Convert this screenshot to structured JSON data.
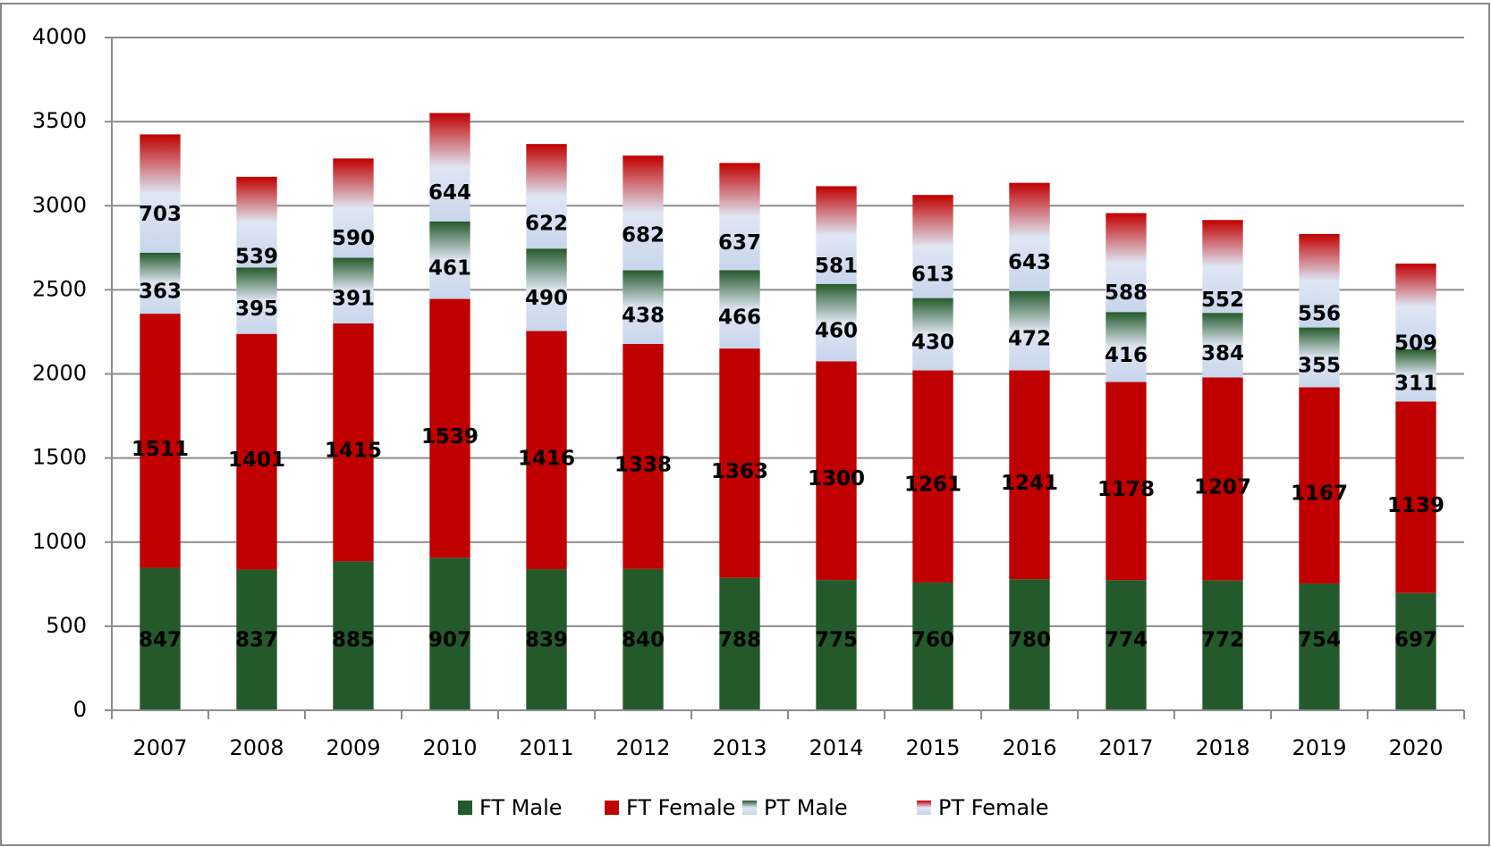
{
  "chart_data": {
    "type": "stacked_bar",
    "categories": [
      "2007",
      "2008",
      "2009",
      "2010",
      "2011",
      "2012",
      "2013",
      "2014",
      "2015",
      "2016",
      "2017",
      "2018",
      "2019",
      "2020"
    ],
    "series": [
      {
        "name": "FT Male",
        "color": "#245a2b",
        "gradient": false,
        "values": [
          847,
          837,
          885,
          907,
          839,
          840,
          788,
          775,
          760,
          780,
          774,
          772,
          754,
          697
        ]
      },
      {
        "name": "FT Female",
        "color": "#c00000",
        "gradient": false,
        "values": [
          1511,
          1401,
          1415,
          1539,
          1416,
          1338,
          1363,
          1300,
          1261,
          1241,
          1178,
          1207,
          1167,
          1139
        ]
      },
      {
        "name": "PT Male",
        "color": "#245a2b",
        "gradient": true,
        "values": [
          363,
          395,
          391,
          461,
          490,
          438,
          466,
          460,
          430,
          472,
          416,
          384,
          355,
          311
        ]
      },
      {
        "name": "PT Female",
        "color": "#c00000",
        "gradient": true,
        "values": [
          703,
          539,
          590,
          644,
          622,
          682,
          637,
          581,
          613,
          643,
          588,
          552,
          556,
          509
        ]
      }
    ],
    "ylim": [
      0,
      4000
    ],
    "yticks": [
      0,
      500,
      1000,
      1500,
      2000,
      2500,
      3000,
      3500,
      4000
    ],
    "grid": true,
    "legend": "bottom"
  }
}
